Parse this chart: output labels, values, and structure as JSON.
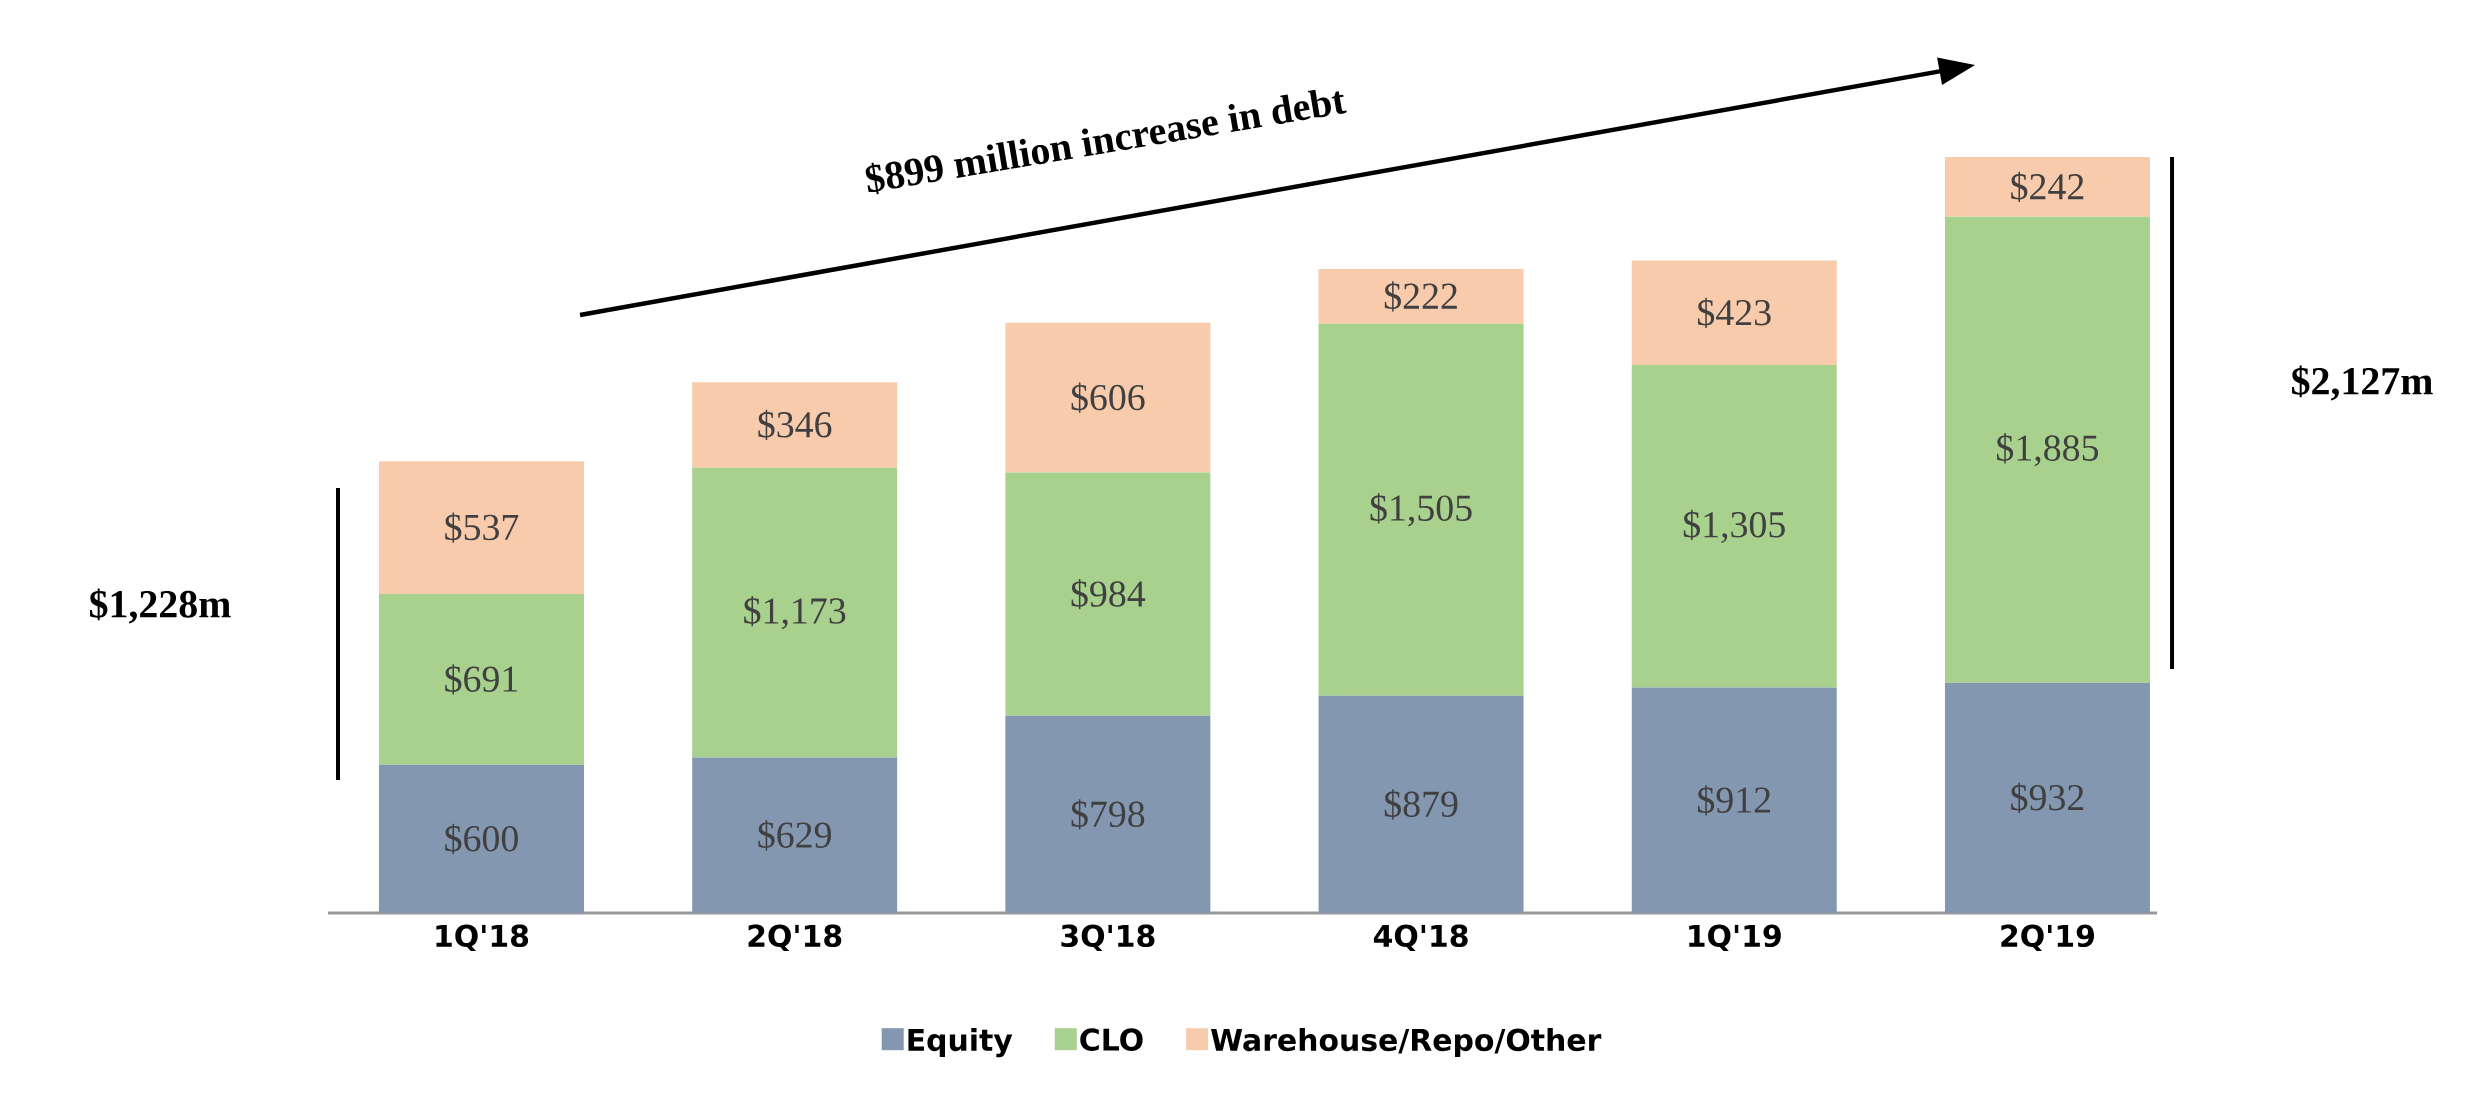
{
  "chart_data": {
    "type": "bar",
    "stacked": true,
    "categories": [
      "1Q'18",
      "2Q'18",
      "3Q'18",
      "4Q'18",
      "1Q'19",
      "2Q'19"
    ],
    "series": [
      {
        "name": "Equity",
        "color": "#8497b0",
        "values": [
          600,
          629,
          798,
          879,
          912,
          932
        ],
        "value_labels": [
          "$600",
          "$629",
          "$798",
          "$879",
          "$912",
          "$932"
        ]
      },
      {
        "name": "CLO",
        "color": "#a9d18e",
        "values": [
          691,
          1173,
          984,
          1505,
          1305,
          1885
        ],
        "value_labels": [
          "$691",
          "$1,173",
          "$984",
          "$1,505",
          "$1,305",
          "$1,885"
        ]
      },
      {
        "name": "Warehouse/Repo/Other",
        "color": "#f8cbad",
        "values": [
          537,
          346,
          606,
          222,
          423,
          242
        ],
        "value_labels": [
          "$537",
          "$346",
          "$606",
          "$222",
          "$423",
          "$242"
        ]
      }
    ],
    "annotations": [
      "$899 million increase in debt",
      "$1,228m",
      "$2,127m"
    ],
    "legend": "bottom"
  }
}
